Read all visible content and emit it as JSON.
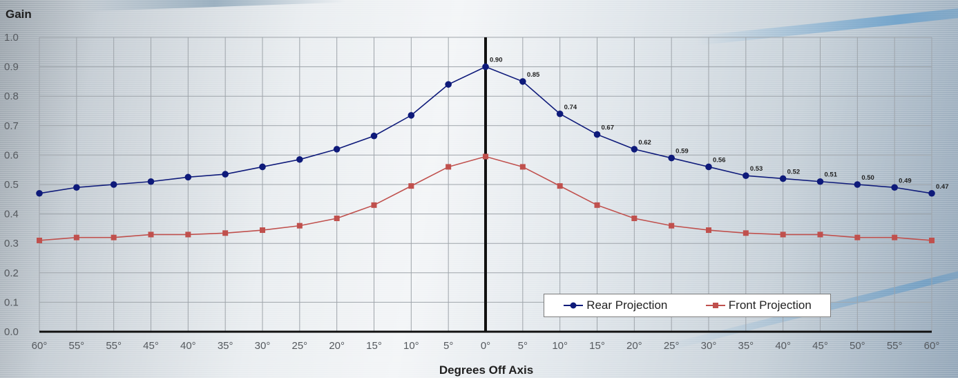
{
  "chart_data": {
    "type": "line",
    "ylabel": "Gain",
    "xlabel": "Degrees Off Axis",
    "ylim": [
      0,
      1.0
    ],
    "yticks": [
      "0.0",
      "0.1",
      "0.2",
      "0.3",
      "0.4",
      "0.5",
      "0.6",
      "0.7",
      "0.8",
      "0.9",
      "1.0"
    ],
    "categories": [
      "60°",
      "55°",
      "55°",
      "45°",
      "40°",
      "35°",
      "30°",
      "25°",
      "20°",
      "15°",
      "10°",
      "5°",
      "0°",
      "5°",
      "10°",
      "15°",
      "20°",
      "25°",
      "30°",
      "35°",
      "40°",
      "45°",
      "50°",
      "55°",
      "60°"
    ],
    "grid": true,
    "legend_position": "bottom-right",
    "series": [
      {
        "name": "Rear Projection",
        "color": "#0e1a7a",
        "marker": "circle",
        "values": [
          0.47,
          0.49,
          0.5,
          0.51,
          0.525,
          0.535,
          0.56,
          0.585,
          0.62,
          0.665,
          0.735,
          0.84,
          0.9,
          0.85,
          0.74,
          0.67,
          0.62,
          0.59,
          0.56,
          0.53,
          0.52,
          0.51,
          0.5,
          0.49,
          0.47
        ],
        "data_labels": [
          "",
          "",
          "",
          "",
          "",
          "",
          "",
          "",
          "",
          "",
          "",
          "",
          "0.90",
          "0.85",
          "0.74",
          "0.67",
          "0.62",
          "0.59",
          "0.56",
          "0.53",
          "0.52",
          "0.51",
          "0.50",
          "0.49",
          "0.47"
        ]
      },
      {
        "name": "Front Projection",
        "color": "#c0504d",
        "marker": "square",
        "values": [
          0.31,
          0.32,
          0.32,
          0.33,
          0.33,
          0.335,
          0.345,
          0.36,
          0.385,
          0.43,
          0.495,
          0.56,
          0.595,
          0.56,
          0.495,
          0.43,
          0.385,
          0.36,
          0.345,
          0.335,
          0.33,
          0.33,
          0.32,
          0.32,
          0.31
        ]
      }
    ]
  }
}
